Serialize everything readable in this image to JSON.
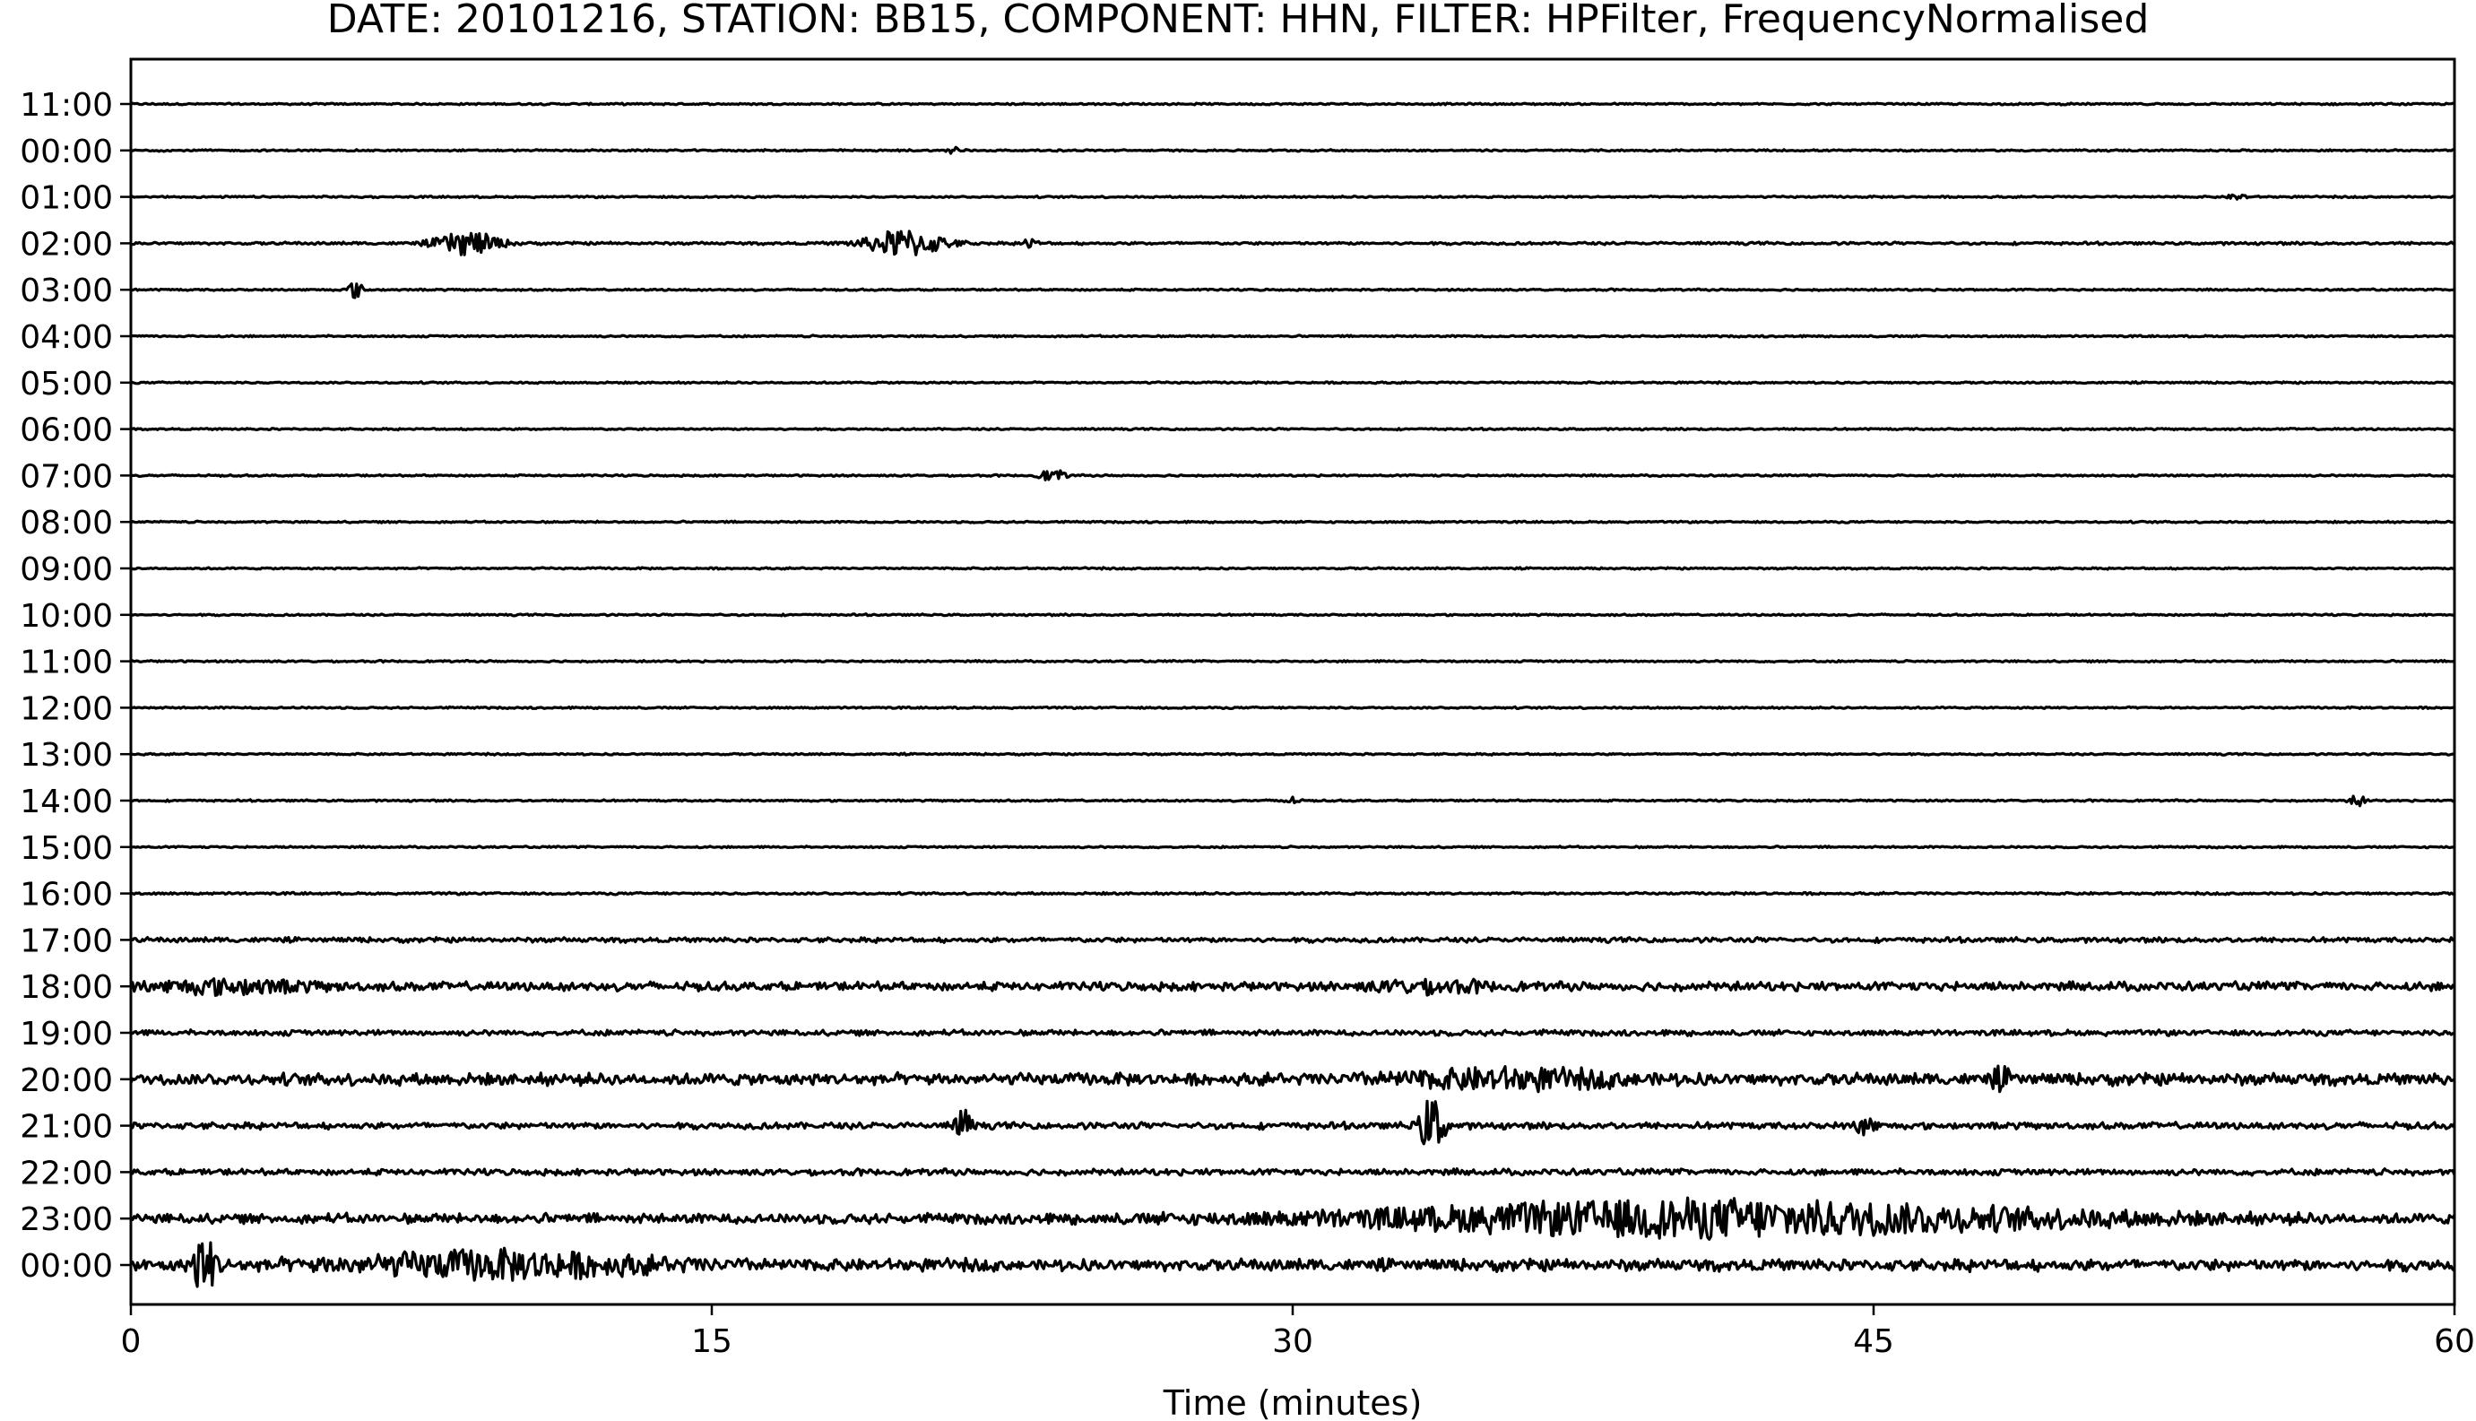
{
  "chart_data": {
    "type": "line",
    "title": "DATE: 20101216, STATION: BB15, COMPONENT: HHN, FILTER: HPFilter, FrequencyNormalised",
    "xlabel": "Time (minutes)",
    "ylabel": "",
    "xlim": [
      0,
      60
    ],
    "x_ticks": [
      0,
      15,
      30,
      45,
      60
    ],
    "x_tick_labels": [
      "0",
      "15",
      "30",
      "45",
      "60"
    ],
    "grid": false,
    "legend": "none",
    "line_color": "#000000",
    "rows": [
      {
        "label": "11:00",
        "noise": 0.08,
        "events": []
      },
      {
        "label": "00:00",
        "noise": 0.08,
        "events": [
          {
            "t": 21.3,
            "amp": 0.5,
            "dur": 0.2
          }
        ]
      },
      {
        "label": "01:00",
        "noise": 0.08,
        "events": [
          {
            "t": 54.4,
            "amp": 0.4,
            "dur": 0.2
          }
        ]
      },
      {
        "label": "02:00",
        "noise": 0.12,
        "events": [
          {
            "t": 8.7,
            "amp": 1.3,
            "dur": 0.8
          },
          {
            "t": 20.0,
            "amp": 1.5,
            "dur": 1.0
          },
          {
            "t": 23.2,
            "amp": 0.5,
            "dur": 0.2
          }
        ]
      },
      {
        "label": "03:00",
        "noise": 0.08,
        "events": [
          {
            "t": 5.8,
            "amp": 0.9,
            "dur": 0.2
          }
        ]
      },
      {
        "label": "04:00",
        "noise": 0.08,
        "events": []
      },
      {
        "label": "05:00",
        "noise": 0.08,
        "events": []
      },
      {
        "label": "06:00",
        "noise": 0.08,
        "events": []
      },
      {
        "label": "07:00",
        "noise": 0.08,
        "events": [
          {
            "t": 23.8,
            "amp": 0.7,
            "dur": 0.3
          }
        ]
      },
      {
        "label": "08:00",
        "noise": 0.08,
        "events": []
      },
      {
        "label": "09:00",
        "noise": 0.08,
        "events": []
      },
      {
        "label": "10:00",
        "noise": 0.08,
        "events": []
      },
      {
        "label": "11:00",
        "noise": 0.08,
        "events": []
      },
      {
        "label": "12:00",
        "noise": 0.08,
        "events": []
      },
      {
        "label": "13:00",
        "noise": 0.08,
        "events": []
      },
      {
        "label": "14:00",
        "noise": 0.08,
        "events": [
          {
            "t": 29.9,
            "amp": 0.5,
            "dur": 0.2
          },
          {
            "t": 57.5,
            "amp": 0.6,
            "dur": 0.2
          }
        ]
      },
      {
        "label": "15:00",
        "noise": 0.08,
        "events": []
      },
      {
        "label": "16:00",
        "noise": 0.1,
        "events": []
      },
      {
        "label": "17:00",
        "noise": 0.22,
        "events": []
      },
      {
        "label": "18:00",
        "noise": 0.4,
        "events": [
          {
            "t": 2.5,
            "amp": 0.6,
            "dur": 2.0
          },
          {
            "t": 33.5,
            "amp": 0.5,
            "dur": 1.5
          }
        ]
      },
      {
        "label": "19:00",
        "noise": 0.25,
        "events": []
      },
      {
        "label": "20:00",
        "noise": 0.55,
        "events": [
          {
            "t": 35.5,
            "amp": 0.8,
            "dur": 3.0
          },
          {
            "t": 48.3,
            "amp": 0.8,
            "dur": 0.3
          }
        ]
      },
      {
        "label": "21:00",
        "noise": 0.3,
        "events": [
          {
            "t": 21.5,
            "amp": 1.8,
            "dur": 0.2
          },
          {
            "t": 33.6,
            "amp": 3.2,
            "dur": 0.3
          },
          {
            "t": 44.8,
            "amp": 1.4,
            "dur": 0.2
          }
        ]
      },
      {
        "label": "22:00",
        "noise": 0.28,
        "events": []
      },
      {
        "label": "23:00",
        "noise": 0.45,
        "events": [
          {
            "t": 41.0,
            "amp": 1.8,
            "dur": 9.0
          }
        ]
      },
      {
        "label": "00:00",
        "noise": 0.55,
        "events": [
          {
            "t": 1.9,
            "amp": 3.0,
            "dur": 0.3
          },
          {
            "t": 9.5,
            "amp": 1.2,
            "dur": 4.0
          }
        ]
      }
    ]
  }
}
